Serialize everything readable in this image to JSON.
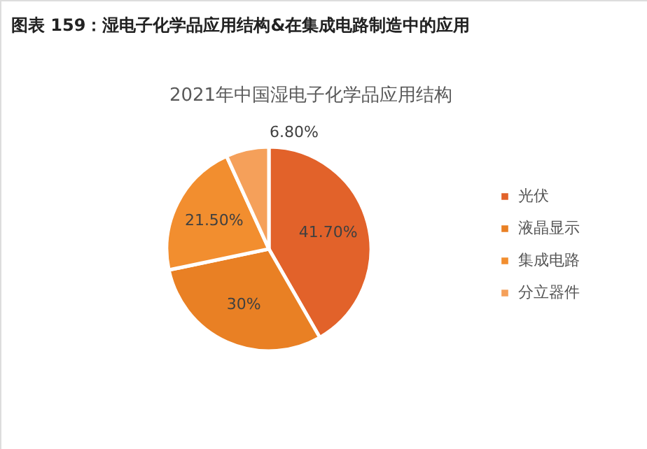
{
  "chart_data": {
    "type": "pie",
    "title": "图表 159：湿电子化学品应用结构&在集成电路制造中的应用",
    "subtitle": "2021年中国湿电子化学品应用结构",
    "categories": [
      "光伏",
      "液晶显示",
      "集成电路",
      "分立器件"
    ],
    "values": [
      41.7,
      30,
      21.5,
      6.8
    ],
    "colors": [
      "#e2622a",
      "#e98024",
      "#f28e2f",
      "#f5a05a"
    ],
    "value_labels": [
      "41.70%",
      "30%",
      "21.50%",
      "6.80%"
    ],
    "legend": "right"
  }
}
